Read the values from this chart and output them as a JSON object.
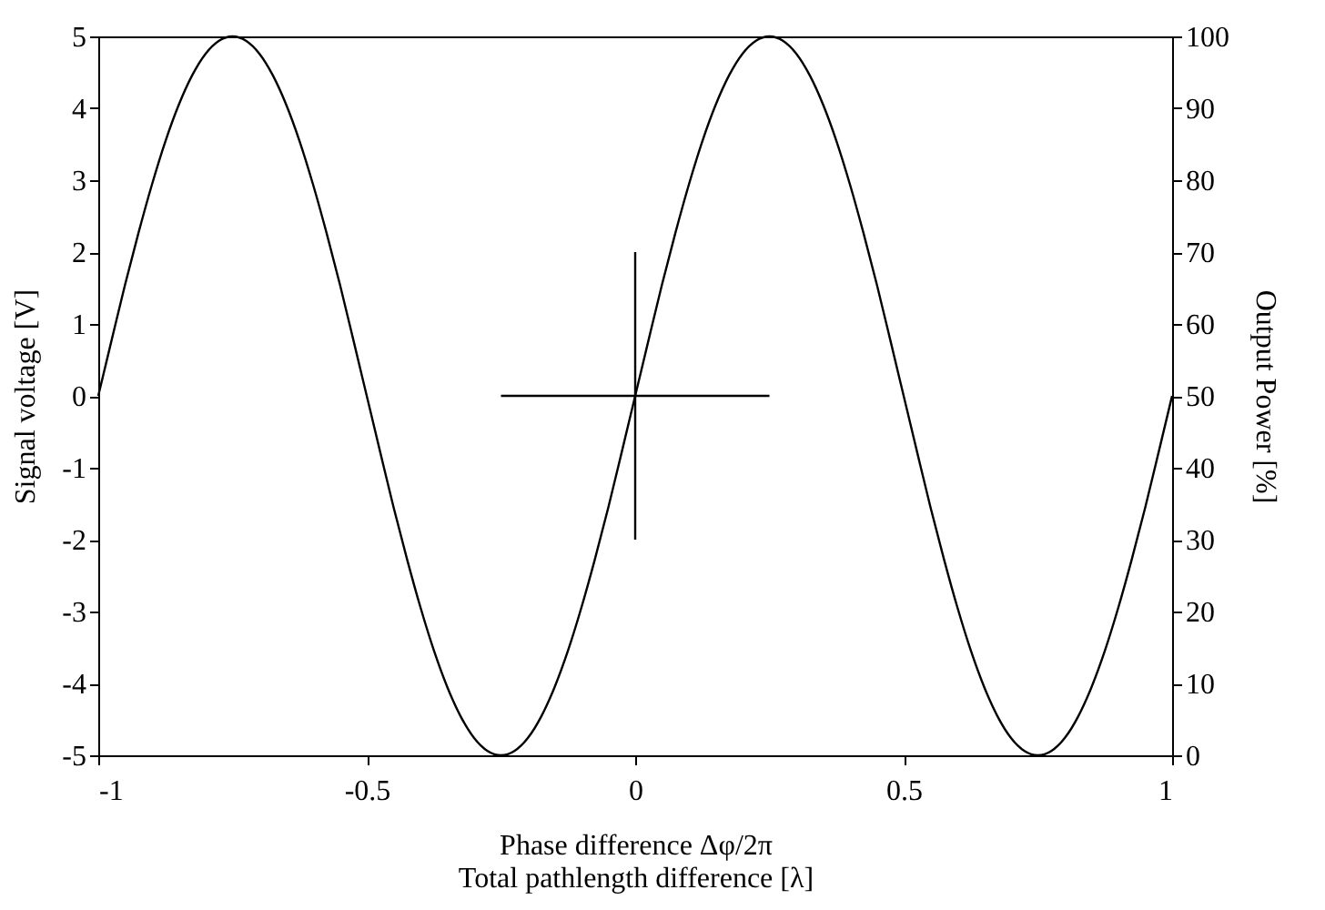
{
  "chart_data": {
    "type": "line",
    "xlabel": "Phase difference Δφ/2π\nTotal pathlength difference [λ]",
    "ylabel": "Signal voltage [V]",
    "y2label": "Output Power [%]",
    "xlim": [
      -1,
      1
    ],
    "xticks": [
      -1,
      -0.5,
      0,
      0.5,
      1
    ],
    "ylim": [
      -5,
      5
    ],
    "yticks": [
      -5,
      -4,
      -3,
      -2,
      -1,
      0,
      1,
      2,
      3,
      4,
      5
    ],
    "y2lim": [
      0,
      100
    ],
    "y2ticks": [
      0,
      10,
      20,
      30,
      40,
      50,
      60,
      70,
      80,
      90,
      100
    ],
    "grid": false,
    "legend": false,
    "marker": "none",
    "line_style": "solid",
    "series": [
      {
        "color": "#000000",
        "x": [
          -1,
          -0.975,
          -0.95,
          -0.925,
          -0.9,
          -0.875,
          -0.85,
          -0.825,
          -0.8,
          -0.775,
          -0.75,
          -0.725,
          -0.7,
          -0.675,
          -0.65,
          -0.625,
          -0.6,
          -0.575,
          -0.55,
          -0.525,
          -0.5,
          -0.475,
          -0.45,
          -0.425,
          -0.4,
          -0.375,
          -0.35,
          -0.325,
          -0.3,
          -0.275,
          -0.25,
          -0.225,
          -0.2,
          -0.175,
          -0.15,
          -0.125,
          -0.1,
          -0.075,
          -0.05,
          -0.025,
          0,
          0.025,
          0.05,
          0.075,
          0.1,
          0.125,
          0.15,
          0.175,
          0.2,
          0.225,
          0.25,
          0.275,
          0.3,
          0.325,
          0.35,
          0.375,
          0.4,
          0.425,
          0.45,
          0.475,
          0.5,
          0.525,
          0.55,
          0.575,
          0.6,
          0.625,
          0.65,
          0.675,
          0.7,
          0.725,
          0.75,
          0.775,
          0.8,
          0.825,
          0.85,
          0.875,
          0.9,
          0.925,
          0.95,
          0.975,
          1
        ],
        "values": [
          0,
          0.78,
          1.55,
          2.27,
          2.94,
          3.54,
          4.05,
          4.46,
          4.76,
          4.94,
          5,
          4.94,
          4.76,
          4.46,
          4.05,
          3.54,
          2.94,
          2.27,
          1.55,
          0.78,
          0,
          -0.78,
          -1.55,
          -2.27,
          -2.94,
          -3.54,
          -4.05,
          -4.46,
          -4.76,
          -4.94,
          -5,
          -4.94,
          -4.76,
          -4.46,
          -4.05,
          -3.54,
          -2.94,
          -2.27,
          -1.55,
          -0.78,
          0,
          0.78,
          1.55,
          2.27,
          2.94,
          3.54,
          4.05,
          4.46,
          4.76,
          4.94,
          5,
          4.94,
          4.76,
          4.46,
          4.05,
          3.54,
          2.94,
          2.27,
          1.55,
          0.78,
          0,
          -0.78,
          -1.55,
          -2.27,
          -2.94,
          -3.54,
          -4.05,
          -4.46,
          -4.76,
          -4.94,
          -5,
          -4.94,
          -4.76,
          -4.46,
          -4.05,
          -3.54,
          -2.94,
          -2.27,
          -1.55,
          -0.78,
          0
        ]
      },
      {
        "color": "#000000",
        "x": [
          -0.25,
          0.25
        ],
        "values": [
          0,
          0
        ]
      },
      {
        "color": "#000000",
        "x": [
          0,
          0
        ],
        "values": [
          -2,
          2
        ]
      }
    ]
  }
}
